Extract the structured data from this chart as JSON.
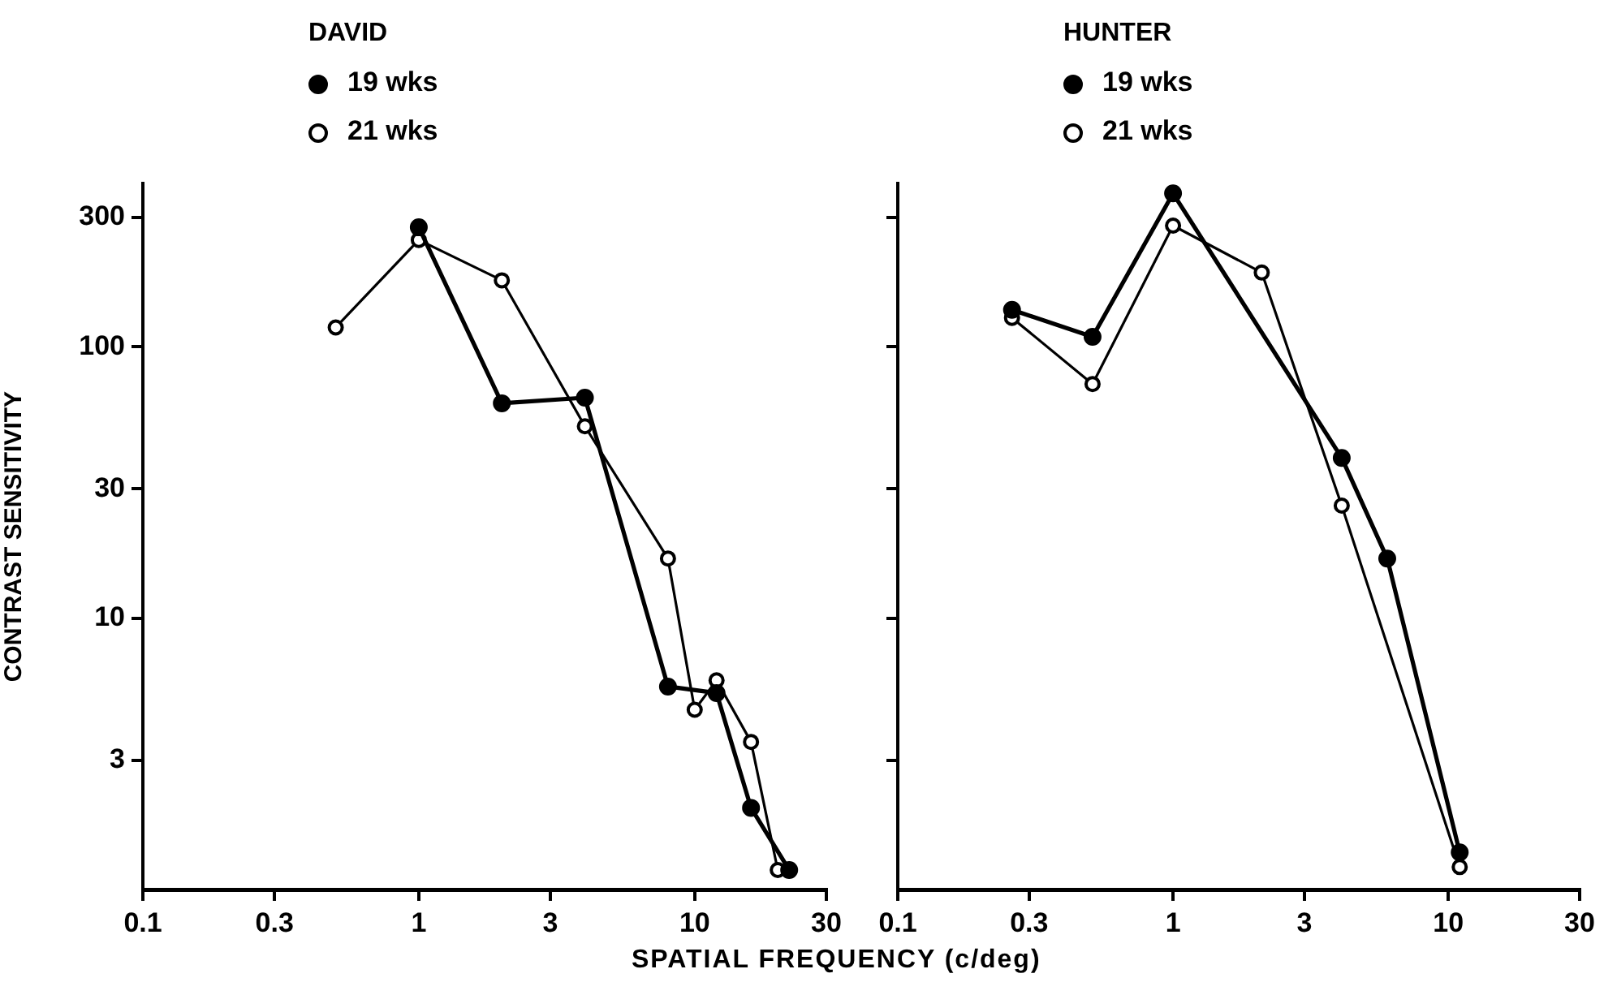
{
  "chart_data": [
    {
      "type": "line",
      "title": "DAVID",
      "ylabel": "CONTRAST SENSITIVITY",
      "xlabel": "SPATIAL FREQUENCY (c/deg)",
      "log": "xy",
      "xlim": [
        0.1,
        30
      ],
      "ylim": [
        1,
        400
      ],
      "xticks": [
        0.1,
        0.3,
        1,
        3,
        10,
        30
      ],
      "yticks": [
        3,
        10,
        30,
        100,
        300
      ],
      "legend": "top left",
      "marker": "circle",
      "series": [
        {
          "name": "19 wks",
          "color": "#000000",
          "x": [
            1,
            2,
            4,
            8,
            12,
            16,
            22
          ],
          "values": [
            276,
            62,
            65,
            5.6,
            5.3,
            2.0,
            1.18
          ]
        },
        {
          "name": "21 wks",
          "color": "#000000",
          "x": [
            0.5,
            1,
            2,
            4,
            8,
            10,
            12,
            16,
            20
          ],
          "values": [
            118,
            248,
            176,
            51,
            16.6,
            4.6,
            5.9,
            3.5,
            1.18
          ]
        }
      ]
    },
    {
      "type": "line",
      "title": "HUNTER",
      "log": "xy",
      "xlim": [
        0.1,
        30
      ],
      "ylim": [
        1,
        400
      ],
      "xticks": [
        0.1,
        0.3,
        1,
        3,
        10,
        30
      ],
      "yticks": [
        3,
        10,
        30,
        100,
        300
      ],
      "tick_labels": "x",
      "legend": "top left",
      "marker": "circle",
      "series": [
        {
          "name": "19 wks",
          "color": "#000000",
          "x": [
            0.26,
            0.51,
            1,
            4.1,
            6,
            11
          ],
          "values": [
            137,
            109,
            368,
            39,
            16.6,
            1.37
          ]
        },
        {
          "name": "21 wks",
          "color": "#000000",
          "x": [
            0.26,
            0.51,
            1,
            2.1,
            4.1,
            11
          ],
          "values": [
            128,
            73,
            280,
            188,
            26,
            1.21
          ]
        }
      ]
    }
  ]
}
